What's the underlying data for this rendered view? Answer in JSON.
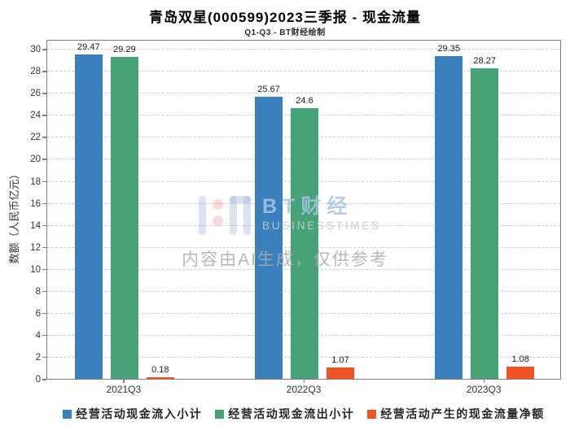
{
  "header": {
    "title": "青岛双星(000599)2023三季报 - 现金流量",
    "subtitle": "Q1-Q3 - BT财经绘制"
  },
  "chart_data": {
    "type": "bar",
    "title": "青岛双星(000599)2023三季报 - 现金流量",
    "subtitle": "Q1-Q3 - BT财经绘制",
    "categories": [
      "2021Q3",
      "2022Q3",
      "2023Q3"
    ],
    "series": [
      {
        "name": "经营活动现金流入小计",
        "color": "#3a80bd",
        "values": [
          29.47,
          25.67,
          29.35
        ],
        "labels": [
          "29.47",
          "25.67",
          "29.35"
        ]
      },
      {
        "name": "经营活动现金流出小计",
        "color": "#48a278",
        "values": [
          29.29,
          24.6,
          28.27
        ],
        "labels": [
          "29.29",
          "24.6",
          "28.27"
        ]
      },
      {
        "name": "经营活动产生的现金流量净额",
        "color": "#f05326",
        "values": [
          0.18,
          1.07,
          1.08
        ],
        "labels": [
          "0.18",
          "1.07",
          "1.08"
        ]
      }
    ],
    "xlabel": "",
    "ylabel": "数额（人民币亿元）",
    "ylim": [
      0,
      30.9
    ],
    "yticks": [
      0,
      2,
      4,
      6,
      8,
      10,
      12,
      14,
      16,
      18,
      20,
      22,
      24,
      26,
      28,
      30
    ],
    "grid": "horizontal-dashed",
    "legend_position": "bottom"
  },
  "watermark": {
    "brand": "BT财经",
    "brand_sub": "BUSINESSTIMES",
    "disclaimer": "内容由AI生成，仅供参考"
  }
}
